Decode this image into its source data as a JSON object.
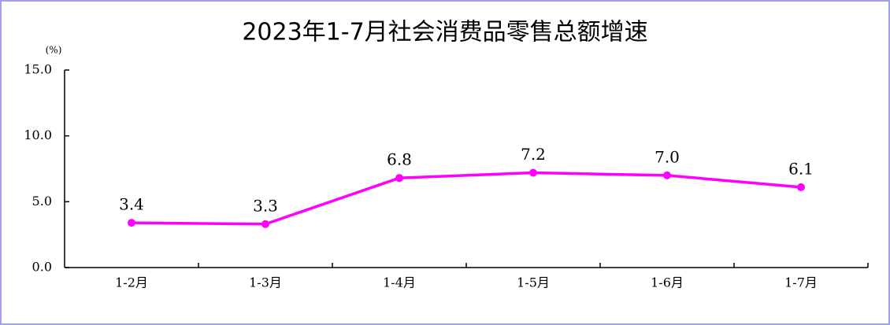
{
  "chart_data": {
    "type": "line",
    "title": "2023年1-7月社会消费品零售总额增速",
    "y_unit": "(%)",
    "categories": [
      "1-2月",
      "1-3月",
      "1-4月",
      "1-5月",
      "1-6月",
      "1-7月"
    ],
    "series": [
      {
        "name": "社会消费品零售总额增速",
        "color": "#ff00ff",
        "values": [
          3.4,
          3.3,
          6.8,
          7.2,
          7.0,
          6.1
        ],
        "value_labels": [
          "3.4",
          "3.3",
          "6.8",
          "7.2",
          "7.0",
          "6.1"
        ]
      }
    ],
    "ylim": [
      0,
      15
    ],
    "yticks": [
      {
        "value": 0,
        "label": "0.0"
      },
      {
        "value": 5,
        "label": "5.0"
      },
      {
        "value": 10,
        "label": "10.0"
      },
      {
        "value": 15,
        "label": "15.0"
      }
    ]
  }
}
